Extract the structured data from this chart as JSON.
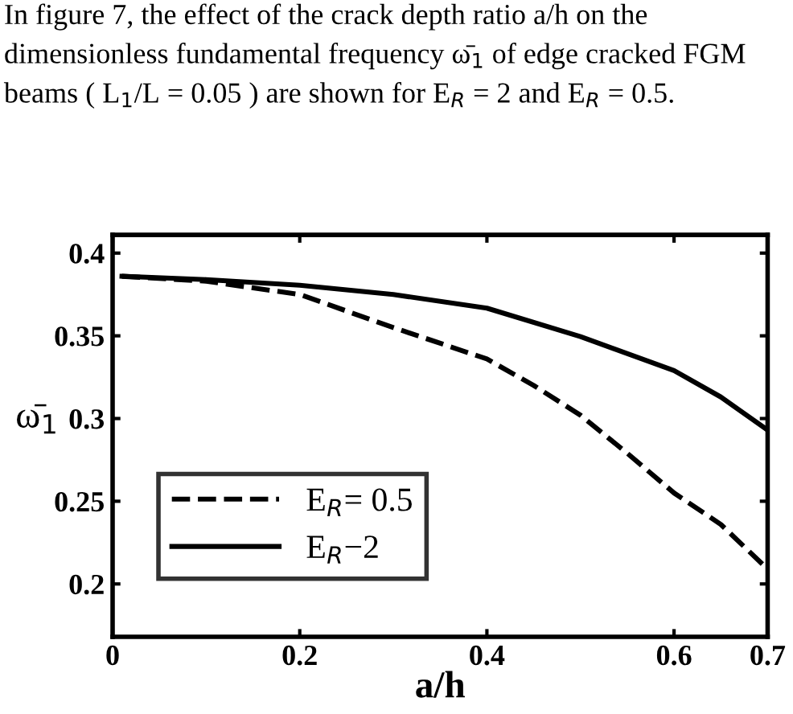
{
  "chart_data": {
    "type": "line",
    "annotations": [
      "In figure 7, the effect of the crack depth ratio a/h on the dimensionless fundamental frequency ω̄$_{1}$ of edge cracked FGM beams ( L$_{1}$/L = 0.05 ) are shown for E$_{R}$ = 2 and E$_{R}$ = 0.5."
    ],
    "xlabel": "a/h",
    "ylabel": "ω̄$_{1}$",
    "xlim": [
      0,
      0.7
    ],
    "ylim": [
      0.168,
      0.411
    ],
    "xticks": [
      0,
      0.2,
      0.4,
      0.6,
      0.7
    ],
    "yticks": [
      0.2,
      0.25,
      0.3,
      0.35,
      0.4
    ],
    "grid": false,
    "legend": "left",
    "marker": "none",
    "series": [
      {
        "name": "E$_{R}$= 0.5",
        "color": "#000000",
        "line_style": "dashed",
        "x": [
          0.01,
          0.1,
          0.2,
          0.3,
          0.4,
          0.45,
          0.5,
          0.55,
          0.6,
          0.65,
          0.7
        ],
        "values": [
          0.386,
          0.383,
          0.375,
          0.355,
          0.336,
          0.32,
          0.302,
          0.279,
          0.255,
          0.236,
          0.209
        ]
      },
      {
        "name": "E$_{R}$−2",
        "color": "#000000",
        "line_style": "solid",
        "x": [
          0.01,
          0.1,
          0.2,
          0.3,
          0.4,
          0.5,
          0.6,
          0.65,
          0.7
        ],
        "values": [
          0.386,
          0.384,
          0.3806,
          0.375,
          0.3667,
          0.3495,
          0.329,
          0.313,
          0.293
        ]
      }
    ]
  }
}
